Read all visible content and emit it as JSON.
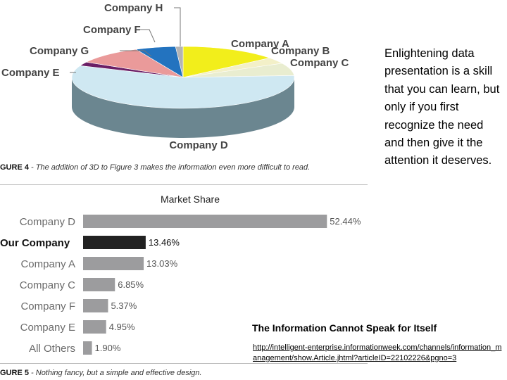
{
  "chart_data": [
    {
      "type": "pie",
      "style": "3d",
      "labels": [
        "Company A",
        "Company B",
        "Company C",
        "Company D",
        "Company E",
        "Company G",
        "Company F",
        "Company H"
      ],
      "values": [
        13.03,
        3.0,
        6.0,
        52.44,
        1.9,
        9.0,
        5.37,
        1.0
      ],
      "colors": [
        "#f2ee1b",
        "#f3f0c8",
        "#e9edd0",
        "#cfe8f2",
        "#6b1f66",
        "#ea9a9a",
        "#2373bf",
        "#b4b4b4"
      ],
      "side_color": "#6b8690"
    },
    {
      "type": "bar",
      "orientation": "horizontal",
      "title": "Market Share",
      "categories": [
        "Company D",
        "Our Company",
        "Company A",
        "Company C",
        "Company F",
        "Company E",
        "All Others"
      ],
      "values": [
        52.44,
        13.46,
        13.03,
        6.85,
        5.37,
        4.95,
        1.9
      ],
      "value_labels": [
        "52.44%",
        "13.46%",
        "13.03%",
        "6.85%",
        "5.37%",
        "4.95%",
        "1.90%"
      ],
      "highlight_index": 1,
      "colors": {
        "bar": "#9c9c9e",
        "highlight": "#222222"
      },
      "xlim": [
        0,
        53
      ]
    }
  ],
  "captions": {
    "fig4_label": "GURE 4",
    "fig4_text": " - The addition of 3D to Figure 3 makes the information even more difficult to read.",
    "fig5_label": "GURE 5",
    "fig5_text": " - Nothing fancy, but a simple and effective design."
  },
  "side_text": "Enlightening data presentation is a skill that you can learn, but only if you first recognize the need and then give it the attention it deserves.",
  "subheading": "The Information Cannot Speak for Itself",
  "url": "http://intelligent-enterprise.informationweek.com/channels/information_management/show.Article.jhtml?articleID=22102226&pgno=3"
}
